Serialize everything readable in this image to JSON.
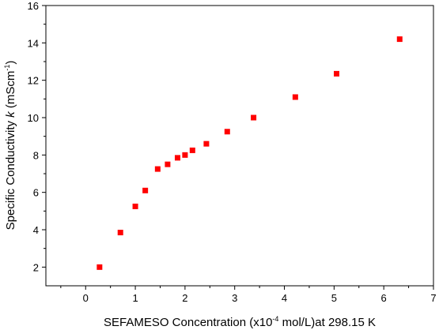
{
  "chart_data": {
    "type": "scatter",
    "xlabel": {
      "prefix": "SEFAMESO Concentration (x10",
      "exponent": "-4",
      "suffix": " mol/L)at 298.15 K"
    },
    "ylabel": {
      "prefix": "Specific Conductivity ",
      "symbol": "k",
      "unit_prefix": " (mScm",
      "exponent": "-1",
      "unit_suffix": ")"
    },
    "xlim": [
      -0.8,
      7.0
    ],
    "ylim": [
      1.0,
      16.0
    ],
    "xticks": [
      0,
      1,
      2,
      3,
      4,
      5,
      6,
      7
    ],
    "yticks": [
      2,
      4,
      6,
      8,
      10,
      12,
      14,
      16
    ],
    "grid": false,
    "marker": "square",
    "color": "#ff0000",
    "series": [
      {
        "x": [
          0.28,
          0.7,
          1.0,
          1.2,
          1.45,
          1.65,
          1.85,
          2.0,
          2.15,
          2.43,
          2.85,
          3.38,
          4.22,
          5.05,
          6.32
        ],
        "y": [
          2.0,
          3.85,
          5.25,
          6.1,
          7.25,
          7.5,
          7.85,
          8.0,
          8.25,
          8.6,
          9.25,
          10.0,
          11.1,
          12.35,
          14.2
        ]
      }
    ]
  }
}
